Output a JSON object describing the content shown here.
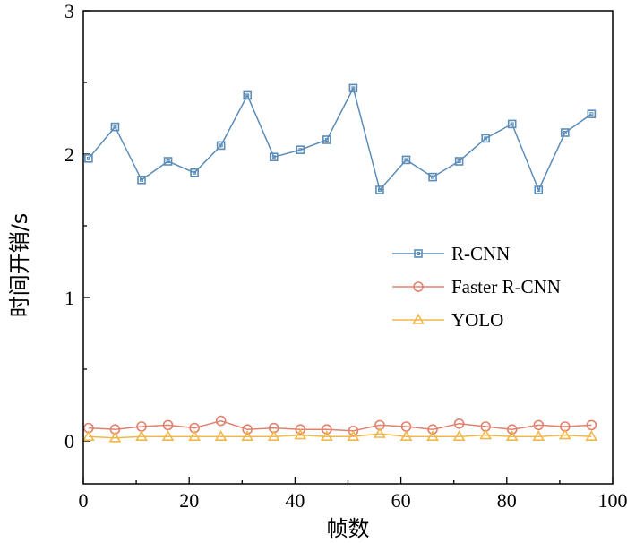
{
  "chart_data": {
    "type": "line",
    "xlabel": "帧数",
    "ylabel": "时间开销/s",
    "xlim": [
      0,
      100
    ],
    "ylim": [
      -0.3,
      3
    ],
    "xticks": [
      0,
      20,
      40,
      60,
      80,
      100
    ],
    "yticks": [
      0,
      1,
      2,
      3
    ],
    "x": [
      1,
      6,
      11,
      16,
      21,
      26,
      31,
      36,
      41,
      46,
      51,
      56,
      61,
      66,
      71,
      76,
      81,
      86,
      91,
      96
    ],
    "legend_position": "center-right",
    "grid": false,
    "series": [
      {
        "name": "R-CNN",
        "color": "#5b8db8",
        "marker": "square",
        "values": [
          1.97,
          2.19,
          1.82,
          1.95,
          1.87,
          2.06,
          2.41,
          1.98,
          2.03,
          2.1,
          2.46,
          1.75,
          1.96,
          1.84,
          1.95,
          2.11,
          2.21,
          1.75,
          2.15,
          2.28
        ]
      },
      {
        "name": "Faster R-CNN",
        "color": "#e0826e",
        "marker": "circle",
        "values": [
          0.09,
          0.08,
          0.1,
          0.11,
          0.09,
          0.14,
          0.08,
          0.09,
          0.08,
          0.08,
          0.07,
          0.11,
          0.1,
          0.08,
          0.12,
          0.1,
          0.08,
          0.11,
          0.1,
          0.11
        ]
      },
      {
        "name": "YOLO",
        "color": "#f0b84c",
        "marker": "triangle",
        "values": [
          0.03,
          0.02,
          0.03,
          0.03,
          0.03,
          0.03,
          0.03,
          0.03,
          0.04,
          0.03,
          0.03,
          0.05,
          0.03,
          0.03,
          0.03,
          0.04,
          0.03,
          0.03,
          0.04,
          0.03
        ]
      }
    ]
  }
}
